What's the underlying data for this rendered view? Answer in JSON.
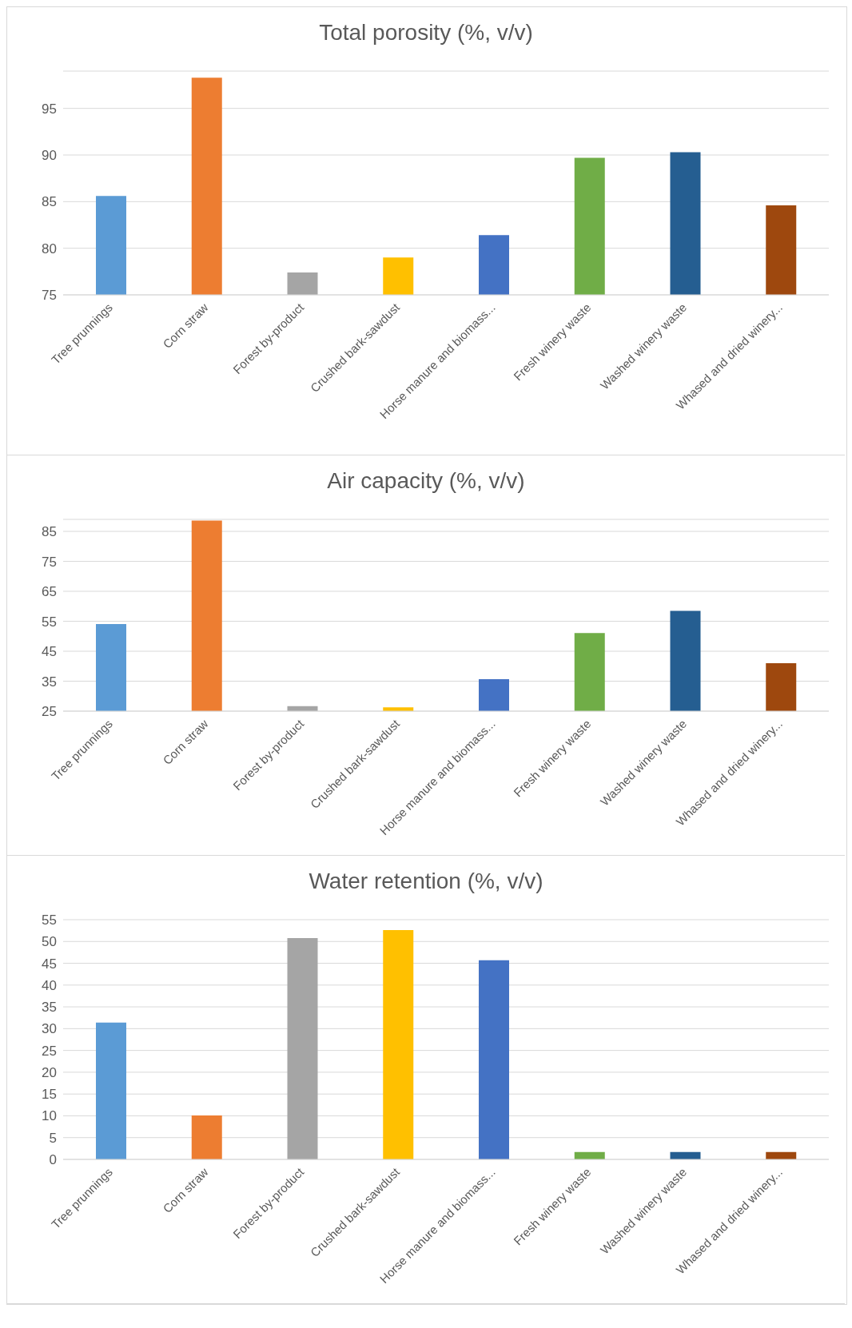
{
  "chart_data": [
    {
      "type": "bar",
      "title": "Total porosity (%, v/v)",
      "categories": [
        "Tree prunnings",
        "Corn straw",
        "Forest by-product",
        "Crushed bark-sawdust",
        "Horse manure and biomass...",
        "Fresh winery waste",
        "Washed winery waste",
        "Whased and dried winery..."
      ],
      "values": [
        85.6,
        98.3,
        77.4,
        79.0,
        81.4,
        89.7,
        90.3,
        84.6
      ],
      "colors": [
        "#5b9bd5",
        "#ed7d31",
        "#a5a5a5",
        "#ffc000",
        "#4472c4",
        "#70ad47",
        "#255e91",
        "#9e480e"
      ],
      "ylim": [
        75,
        99
      ],
      "yticks": [
        75,
        80,
        85,
        90,
        95
      ],
      "grid": "y",
      "legend": false
    },
    {
      "type": "bar",
      "title": "Air capacity (%, v/v)",
      "categories": [
        "Tree prunnings",
        "Corn straw",
        "Forest by-product",
        "Crushed bark-sawdust",
        "Horse manure and biomass...",
        "Fresh winery waste",
        "Washed winery waste",
        "Whased and dried winery..."
      ],
      "values": [
        54.1,
        88.6,
        26.7,
        26.3,
        35.7,
        51.1,
        58.5,
        41.0
      ],
      "colors": [
        "#5b9bd5",
        "#ed7d31",
        "#a5a5a5",
        "#ffc000",
        "#4472c4",
        "#70ad47",
        "#255e91",
        "#9e480e"
      ],
      "ylim": [
        25,
        89
      ],
      "yticks": [
        25,
        35,
        45,
        55,
        65,
        75,
        85
      ],
      "grid": "y",
      "legend": false
    },
    {
      "type": "bar",
      "title": "Water retention (%, v/v)",
      "categories": [
        "Tree prunnings",
        "Corn straw",
        "Forest by-product",
        "Crushed bark-sawdust",
        "Horse manure and biomass...",
        "Fresh winery waste",
        "Washed winery waste",
        "Whased and dried winery..."
      ],
      "values": [
        31.4,
        10.1,
        50.8,
        52.6,
        45.7,
        1.7,
        1.7,
        1.7
      ],
      "colors": [
        "#5b9bd5",
        "#ed7d31",
        "#a5a5a5",
        "#ffc000",
        "#4472c4",
        "#70ad47",
        "#255e91",
        "#9e480e"
      ],
      "ylim": [
        0,
        55
      ],
      "yticks": [
        0,
        5,
        10,
        15,
        20,
        25,
        30,
        35,
        40,
        45,
        50,
        55
      ],
      "grid": "y",
      "legend": false
    }
  ]
}
